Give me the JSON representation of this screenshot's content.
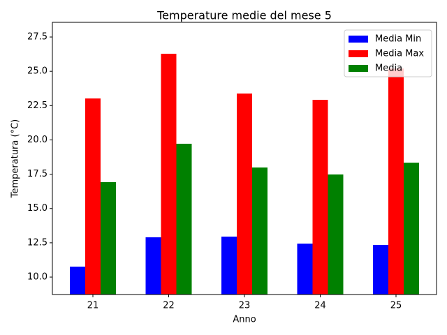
{
  "chart_data": {
    "type": "bar",
    "title": "Temperature medie del mese 5",
    "x_label": "Anno",
    "y_label": "Temperatura (°C)",
    "categories": [
      "21",
      "22",
      "23",
      "24",
      "25"
    ],
    "series": [
      {
        "name": "Media Min",
        "color": "#0000ff",
        "values": [
          10.76,
          12.9,
          12.95,
          12.44,
          12.34
        ]
      },
      {
        "name": "Media Max",
        "color": "#ff0000",
        "values": [
          23.02,
          26.28,
          23.38,
          22.92,
          25.2
        ]
      },
      {
        "name": "Media",
        "color": "#008000",
        "values": [
          16.92,
          19.72,
          17.99,
          17.48,
          18.34
        ]
      }
    ],
    "ylim": [
      8.73,
      28.57
    ],
    "yticks": [
      {
        "value": 10,
        "label": "10.0"
      },
      {
        "value": 12.5,
        "label": "12.5"
      },
      {
        "value": 15,
        "label": "15.0"
      },
      {
        "value": 17.5,
        "label": "17.5"
      },
      {
        "value": 20,
        "label": "20.0"
      },
      {
        "value": 22.5,
        "label": "22.5"
      },
      {
        "value": 25,
        "label": "25.0"
      },
      {
        "value": 27.5,
        "label": "27.5"
      }
    ],
    "legend": "upper right"
  }
}
